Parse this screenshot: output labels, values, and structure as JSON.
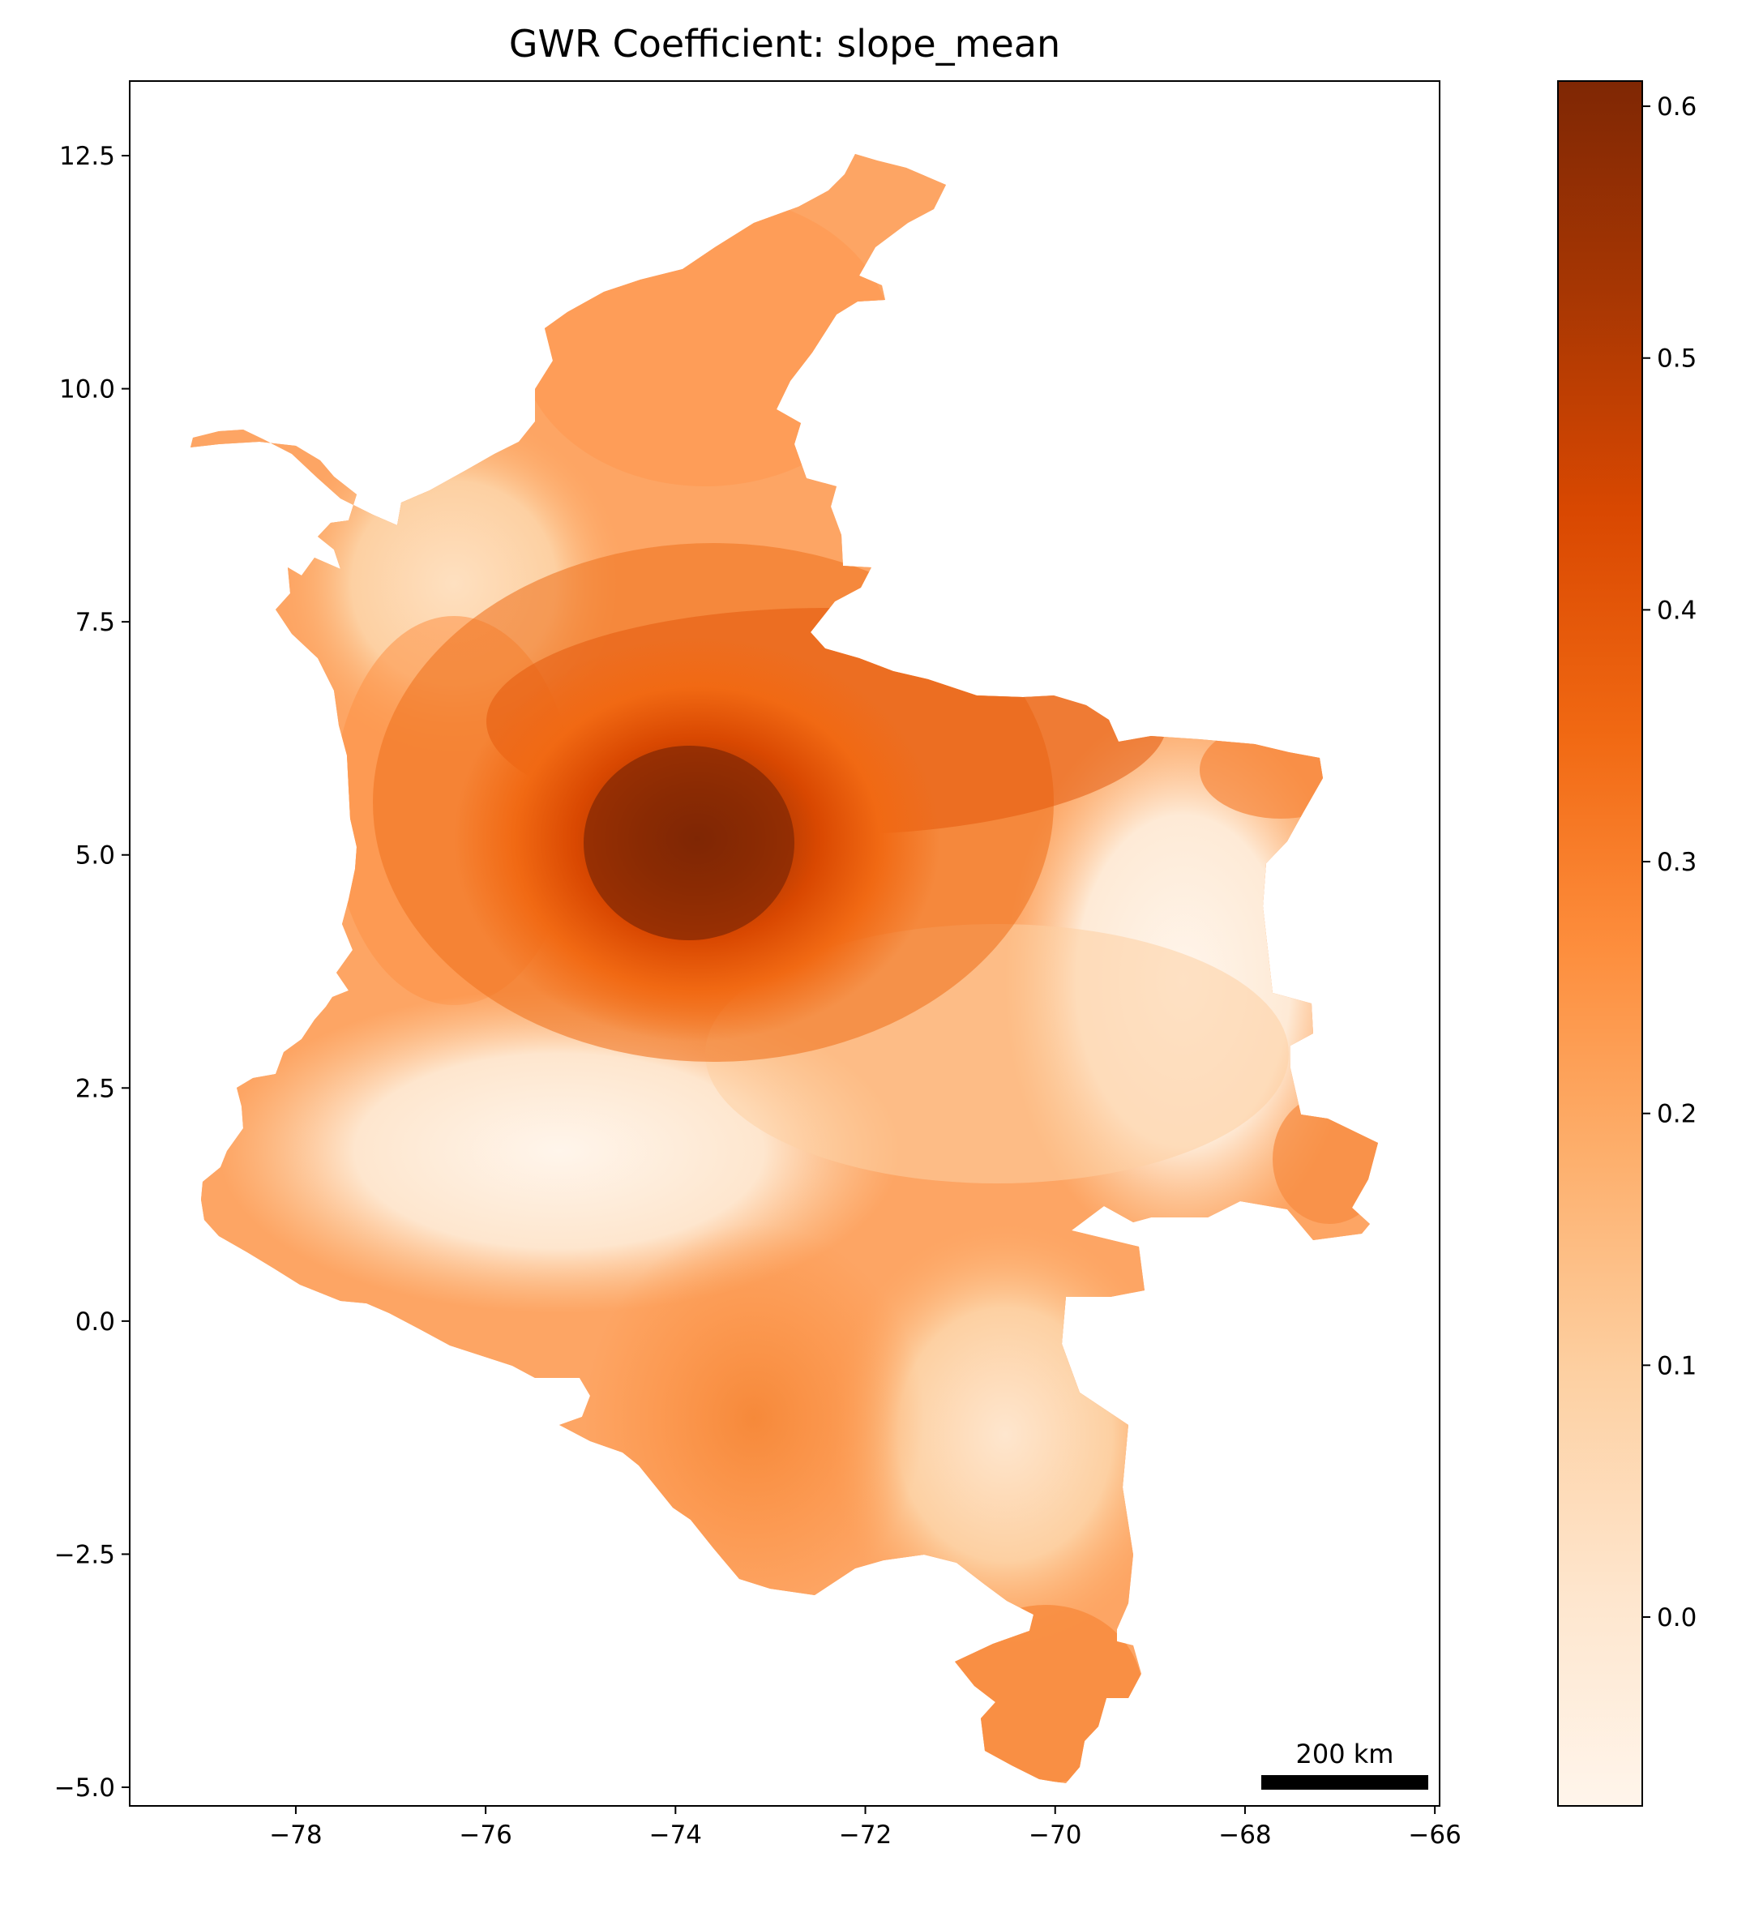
{
  "title": "GWR Coefficient: slope_mean",
  "map": {
    "x_axis": {
      "ticks": [
        -78,
        -76,
        -74,
        -72,
        -70,
        -68,
        -66
      ],
      "tick_labels": [
        "−78",
        "−76",
        "−74",
        "−72",
        "−70",
        "−68",
        "−66"
      ],
      "range": [
        -79.75,
        -65.95
      ]
    },
    "y_axis": {
      "ticks": [
        12.5,
        10.0,
        7.5,
        5.0,
        2.5,
        0.0,
        -2.5,
        -5.0
      ],
      "tick_labels": [
        "12.5",
        "10.0",
        "7.5",
        "5.0",
        "2.5",
        "0.0",
        "−2.5",
        "−5.0"
      ],
      "range": [
        -5.2,
        13.3
      ]
    },
    "scale_bar": {
      "label": "200 km"
    },
    "region": "Colombia",
    "peak_center": {
      "lon": -73.9,
      "lat": 5.2,
      "value": 0.6
    }
  },
  "colorbar": {
    "colormap": "Oranges",
    "range": [
      -0.075,
      0.61
    ],
    "ticks": [
      0.0,
      0.1,
      0.2,
      0.3,
      0.4,
      0.5,
      0.6
    ],
    "tick_labels": [
      "0.0",
      "0.1",
      "0.2",
      "0.3",
      "0.4",
      "0.5",
      "0.6"
    ],
    "colors": {
      "low": "#fff5eb",
      "mid": "#fd8d3c",
      "high": "#7f2704"
    }
  }
}
